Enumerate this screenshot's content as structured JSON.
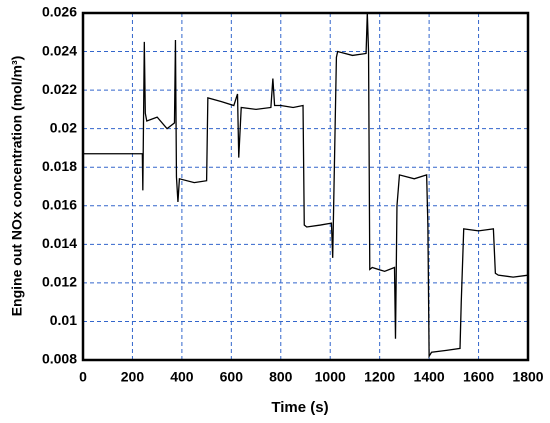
{
  "chart_data": {
    "type": "line",
    "x_label": "Time (s)",
    "y_label": "Engine out NOx concentration (mol/m³)",
    "x": [
      0,
      240,
      242,
      248,
      252,
      258,
      300,
      340,
      370,
      374,
      378,
      384,
      390,
      450,
      500,
      505,
      560,
      610,
      625,
      630,
      640,
      700,
      760,
      768,
      775,
      800,
      850,
      890,
      895,
      905,
      960,
      1005,
      1010,
      1025,
      1030,
      1090,
      1145,
      1150,
      1155,
      1160,
      1170,
      1220,
      1260,
      1264,
      1270,
      1280,
      1340,
      1390,
      1395,
      1400,
      1410,
      1470,
      1525,
      1530,
      1540,
      1600,
      1660,
      1668,
      1680,
      1740,
      1800
    ],
    "values": [
      0.0187,
      0.0187,
      0.0168,
      0.0245,
      0.0208,
      0.0204,
      0.0206,
      0.02,
      0.0203,
      0.0246,
      0.0175,
      0.0162,
      0.0174,
      0.0172,
      0.0173,
      0.0216,
      0.0214,
      0.0212,
      0.0218,
      0.0185,
      0.0211,
      0.021,
      0.0211,
      0.0226,
      0.0212,
      0.0212,
      0.0211,
      0.0212,
      0.015,
      0.0149,
      0.015,
      0.0151,
      0.0133,
      0.0237,
      0.024,
      0.0238,
      0.0239,
      0.026,
      0.024,
      0.0127,
      0.0128,
      0.0126,
      0.0128,
      0.0091,
      0.016,
      0.0176,
      0.0174,
      0.0176,
      0.015,
      0.0082,
      0.0084,
      0.0085,
      0.0086,
      0.011,
      0.0148,
      0.0147,
      0.0148,
      0.0125,
      0.0124,
      0.0123,
      0.0124
    ],
    "color": "#000000",
    "xlim": [
      0,
      1800
    ],
    "xticks": [
      0,
      200,
      400,
      600,
      800,
      1000,
      1200,
      1400,
      1600,
      1800
    ],
    "ylim": [
      0.008,
      0.026
    ],
    "yticks": [
      0.008,
      0.01,
      0.012,
      0.014,
      0.016,
      0.018,
      0.02,
      0.022,
      0.024,
      0.026
    ],
    "grid": true,
    "grid_color": "#3366cc"
  }
}
